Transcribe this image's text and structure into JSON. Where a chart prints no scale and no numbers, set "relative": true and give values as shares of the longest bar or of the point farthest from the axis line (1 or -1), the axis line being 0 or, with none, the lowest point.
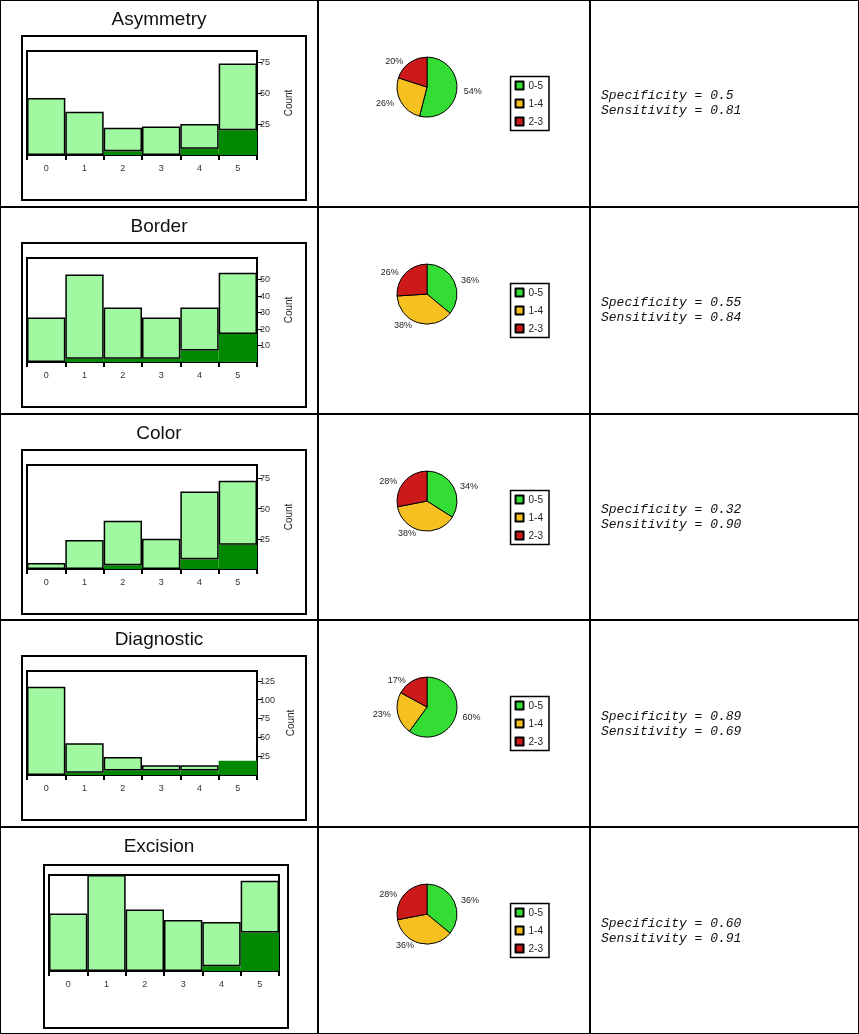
{
  "chart_data": [
    {
      "type": "bar",
      "title": "Asymmetry",
      "stacked": true,
      "categories": [
        "0",
        "1",
        "2",
        "3",
        "4",
        "5"
      ],
      "ylabel": "Count",
      "ylim": [
        0,
        84
      ],
      "yticks": [
        25,
        50,
        75
      ],
      "series": [
        {
          "color": "#008800",
          "values": [
            0,
            0,
            3,
            0,
            5,
            20
          ]
        },
        {
          "color": "#a0f8a0",
          "values": [
            46,
            35,
            19,
            23,
            20,
            54
          ]
        }
      ]
    },
    {
      "type": "pie",
      "categories": [
        "0-5",
        "1-4",
        "2-3"
      ],
      "values": [
        54,
        26,
        20
      ],
      "colors": [
        "#33dd33",
        "#f5c020",
        "#cc1a1a"
      ],
      "value_labels": [
        "54%",
        "26%",
        "20%"
      ],
      "legend": "right"
    },
    {
      "type": "other",
      "annotations": [
        "Specificity = 0.5",
        "Sensitivity = 0.81"
      ]
    },
    {
      "type": "bar",
      "title": "Border",
      "stacked": true,
      "categories": [
        "0",
        "1",
        "2",
        "3",
        "4",
        "5"
      ],
      "ylabel": "Count",
      "ylim": [
        0,
        63
      ],
      "yticks": [
        10,
        20,
        30,
        40,
        50
      ],
      "series": [
        {
          "color": "#008800",
          "values": [
            0,
            2,
            2,
            2,
            7,
            17
          ]
        },
        {
          "color": "#a0f8a0",
          "values": [
            27,
            51,
            31,
            25,
            26,
            37
          ]
        }
      ]
    },
    {
      "type": "pie",
      "categories": [
        "0-5",
        "1-4",
        "2-3"
      ],
      "values": [
        36,
        38,
        26
      ],
      "colors": [
        "#33dd33",
        "#f5c020",
        "#cc1a1a"
      ],
      "value_labels": [
        "36%",
        "38%",
        "26%"
      ],
      "legend": "right"
    },
    {
      "type": "other",
      "annotations": [
        "Specificity = 0.55",
        "Sensitivity = 0.84"
      ]
    },
    {
      "type": "bar",
      "title": "Color",
      "stacked": true,
      "categories": [
        "0",
        "1",
        "2",
        "3",
        "4",
        "5"
      ],
      "ylabel": "Count",
      "ylim": [
        0,
        86
      ],
      "yticks": [
        25,
        50,
        75
      ],
      "series": [
        {
          "color": "#008800",
          "values": [
            0,
            0,
            3,
            0,
            8,
            20
          ]
        },
        {
          "color": "#a0f8a0",
          "values": [
            5,
            24,
            37,
            25,
            56,
            53
          ]
        }
      ]
    },
    {
      "type": "pie",
      "categories": [
        "0-5",
        "1-4",
        "2-3"
      ],
      "values": [
        34,
        38,
        28
      ],
      "colors": [
        "#33dd33",
        "#f5c020",
        "#cc1a1a"
      ],
      "value_labels": [
        "34%",
        "38%",
        "28%"
      ],
      "legend": "right"
    },
    {
      "type": "other",
      "annotations": [
        "Specificity = 0.32",
        "Sensitivity = 0.90"
      ]
    },
    {
      "type": "bar",
      "title": "Diagnostic",
      "stacked": true,
      "categories": [
        "0",
        "1",
        "2",
        "3",
        "4",
        "5"
      ],
      "ylabel": "Count",
      "ylim": [
        0,
        138
      ],
      "yticks": [
        25,
        50,
        75,
        100,
        125
      ],
      "series": [
        {
          "color": "#008800",
          "values": [
            0,
            3,
            6,
            6,
            6,
            19
          ]
        },
        {
          "color": "#a0f8a0",
          "values": [
            117,
            39,
            18,
            7,
            7,
            null
          ]
        }
      ]
    },
    {
      "type": "pie",
      "categories": [
        "0-5",
        "1-4",
        "2-3"
      ],
      "values": [
        60,
        23,
        17
      ],
      "colors": [
        "#33dd33",
        "#f5c020",
        "#cc1a1a"
      ],
      "value_labels": [
        "60%",
        "23%",
        "17%"
      ],
      "legend": "right"
    },
    {
      "type": "other",
      "annotations": [
        "Specificity = 0.89",
        "Sensitivity = 0.69"
      ]
    },
    {
      "type": "bar",
      "title": "Excision",
      "stacked": true,
      "relative": true,
      "categories": [
        "0",
        "1",
        "2",
        "3",
        "4",
        "5"
      ],
      "series": [
        {
          "color": "#008800",
          "values": [
            0,
            0,
            0,
            0,
            0.05,
            0.4
          ]
        },
        {
          "color": "#a0f8a0",
          "values": [
            0.6,
            1,
            0.64,
            0.53,
            0.46,
            0.54
          ]
        }
      ]
    },
    {
      "type": "pie",
      "categories": [
        "0-5",
        "1-4",
        "2-3"
      ],
      "values": [
        36,
        36,
        28
      ],
      "colors": [
        "#33dd33",
        "#f5c020",
        "#cc1a1a"
      ],
      "value_labels": [
        "36%",
        "36%",
        "28%"
      ],
      "legend": "right"
    },
    {
      "type": "other",
      "annotations": [
        "Specificity = 0.60",
        "Sensitivity = 0.91"
      ]
    }
  ]
}
